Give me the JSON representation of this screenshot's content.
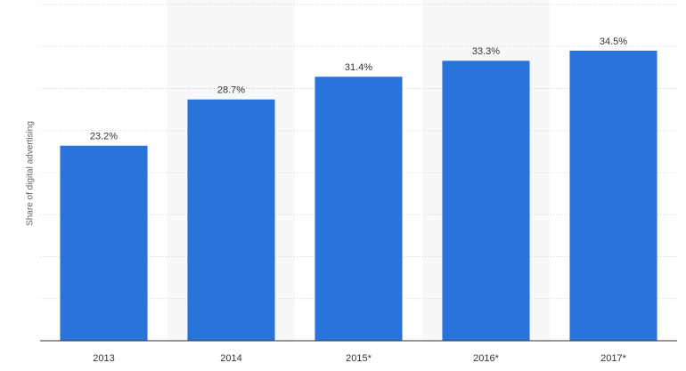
{
  "chart_data": {
    "type": "bar",
    "y_label": "Share of digital advertising",
    "categories": [
      "2013",
      "2014",
      "2015*",
      "2016*",
      "2017*"
    ],
    "values": [
      23.2,
      28.7,
      31.4,
      33.3,
      34.5
    ],
    "value_labels": [
      "23.2%",
      "28.7%",
      "31.4%",
      "33.3%",
      "34.5%"
    ],
    "color": "#2874db",
    "ylim": [
      0,
      40
    ],
    "yticks": [
      0,
      5,
      10,
      15,
      20,
      25,
      30,
      35,
      40
    ],
    "grid": true
  }
}
